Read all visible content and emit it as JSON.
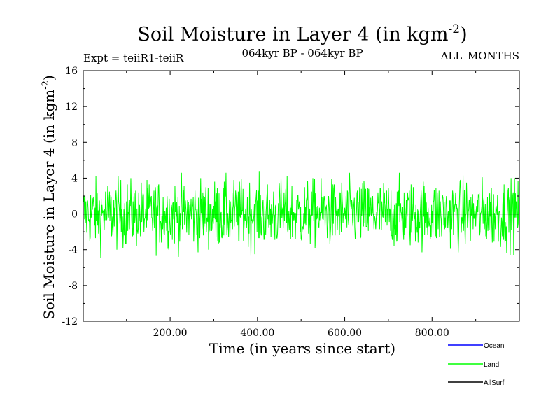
{
  "chart_data": {
    "type": "line",
    "title": "Soil Moisture in Layer 4 (in kgm",
    "title_sup": "-2",
    "title_suffix": ")",
    "expt_label": "Expt = teiiR1-teiiR",
    "period_label": "064kyr BP - 064kyr BP",
    "months_label": "ALL_MONTHS",
    "xlabel": "Time (in years since start)",
    "ylabel": "Soil Moisture in Layer 4 (in kgm",
    "ylabel_sup": "-2",
    "ylabel_suffix": ")",
    "xlim": [
      1,
      1000
    ],
    "ylim": [
      -12,
      16
    ],
    "xticks": [
      200,
      400,
      600,
      800
    ],
    "xtick_labels": [
      "200.00",
      "400.00",
      "600.00",
      "800.00"
    ],
    "yticks": [
      -12,
      -8,
      -4,
      0,
      4,
      8,
      12,
      16
    ],
    "ytick_labels": [
      "-12",
      "-8",
      "-4",
      "0",
      "4",
      "8",
      "12",
      "16"
    ],
    "zero_line": true,
    "legend": [
      {
        "name": "Ocean",
        "color": "#0000ff"
      },
      {
        "name": "Land",
        "color": "#00ff00"
      },
      {
        "name": "AllSurf",
        "color": "#000000"
      }
    ],
    "series": [
      {
        "name": "Land",
        "color": "#00ff00",
        "x_start": 1,
        "x_step": 1,
        "values": []
      }
    ]
  }
}
